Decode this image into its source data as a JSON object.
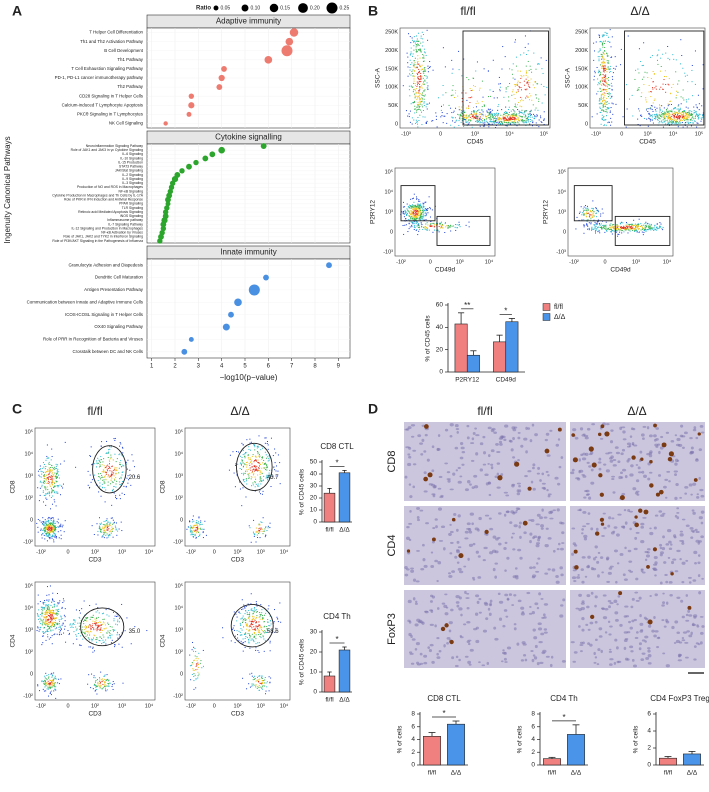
{
  "panel_letters": [
    "A",
    "B",
    "C",
    "D"
  ],
  "panel_b": {
    "headers": [
      "fl/fl",
      "Δ/Δ"
    ],
    "flow_top": {
      "ylabel": "SSC-A",
      "xlabel": "CD45",
      "yticks": [
        "250K",
        "200K",
        "150K",
        "100K",
        "50K",
        "0"
      ],
      "xticks": [
        "-10³",
        "0",
        "10³",
        "10⁴",
        "10⁵"
      ]
    },
    "flow_bottom": {
      "ylabel": "P2RY12",
      "xlabel": "CD49d",
      "yticks": [
        "10⁵",
        "10⁴",
        "10³",
        "0",
        "-10³"
      ],
      "xticks": [
        "-10²",
        "0",
        "10³",
        "10⁴"
      ]
    }
  },
  "panel_c": {
    "headers": [
      "fl/fl",
      "Δ/Δ"
    ],
    "flow_cd8": {
      "ylabel": "CD8",
      "xlabel": "CD3",
      "yticks": [
        "10⁵",
        "10⁴",
        "10³",
        "10²",
        "0",
        "-10²"
      ],
      "xticks": [
        "-10²",
        "0",
        "10²",
        "10³",
        "10⁴"
      ],
      "gates": [
        "20.6",
        "43.7"
      ]
    },
    "flow_cd4": {
      "ylabel": "CD4",
      "xlabel": "CD3",
      "yticks": [
        "10⁵",
        "10⁴",
        "10³",
        "10²",
        "0",
        "-10²"
      ],
      "xticks": [
        "-10²",
        "0",
        "10²",
        "10³",
        "10⁴"
      ],
      "gates": [
        "35.0",
        "58.6"
      ]
    }
  },
  "panel_d": {
    "headers": [
      "fl/fl",
      "Δ/Δ"
    ],
    "stains": [
      "CD8",
      "CD4",
      "FoxP3"
    ]
  },
  "chart_data": [
    {
      "type": "dot",
      "xlabel": "−log10(p−value)",
      "ylabel": "Ingenuity Canonical Pathways",
      "xlim": [
        0.8,
        9.5
      ],
      "xticks": [
        1,
        2,
        3,
        4,
        5,
        6,
        7,
        8,
        9
      ],
      "size_legend": {
        "title": "Ratio",
        "values": [
          0.05,
          {
            "value": 0.1,
            "label": "0.10"
          },
          0.15,
          {
            "value": 0.2,
            "label": "0.20"
          },
          0.25
        ]
      },
      "facets": [
        {
          "name": "Adaptive immunity",
          "color": "#ee7b70",
          "categories": [
            "T Helper Cell Differentiation",
            "Th1 and Th2 Activation Pathway",
            "B Cell Development",
            "Th1 Pathway",
            "T Cell Exhaustion Signaling Pathway",
            "PD-1, PD-L1 cancer immunotherapy pathway",
            "Th2 Pathway",
            "CD28 Signaling in T Helper Cells",
            "Calcium-induced T Lymphocyte Apoptosis",
            "PKCθ Signaling in T Lymphocytes",
            "NK Cell Signaling"
          ],
          "values": [
            7.1,
            6.9,
            6.8,
            6.0,
            4.1,
            4.0,
            3.9,
            2.7,
            2.7,
            2.6,
            1.6
          ],
          "sizes": [
            0.15,
            0.12,
            0.25,
            0.12,
            0.07,
            0.08,
            0.07,
            0.06,
            0.08,
            0.05,
            0.04
          ]
        },
        {
          "name": "Cytokine signalling",
          "color": "#2ca52c",
          "categories": [
            "Neuroinflammation Signaling Pathway",
            "Role of JAK1 and JAK3 in γc Cytokine Signaling",
            "IL-6 Signaling",
            "IL-10 Signaling",
            "IL-15 Production",
            "STAT3 Pathway",
            "JAK/Stat Signaling",
            "IL-2 Signaling",
            "IL-9 Signaling",
            "IL-3 Signaling",
            "Production of NO and ROS in Macrophages",
            "NF-κB Signaling",
            "Cytokine Production in Macrophages and Th Cells by IL-17A",
            "Role of PKR in IFN Induction and Antiviral Response",
            "PPAR Signaling",
            "TLR Signaling",
            "Retinoic acid Mediated Apoptosis Signaling",
            "iNOS Signaling",
            "Inflammasome pathway",
            "IL-7 Signaling Pathway",
            "IL-12 Signaling and Production in Macrophages",
            "NF-κB Activation by Viruses",
            "Role of JAK1, JAK2 and TYK2 in Interferon Signaling",
            "Role of PI3K/AKT Signaling in the Pathogenesis of Influenza"
          ],
          "values": [
            5.8,
            4.0,
            3.6,
            3.3,
            2.9,
            2.6,
            2.3,
            2.1,
            2.0,
            1.9,
            1.85,
            1.8,
            1.75,
            1.7,
            1.7,
            1.65,
            1.6,
            1.6,
            1.55,
            1.5,
            1.5,
            1.45,
            1.4,
            1.35
          ],
          "sizes": [
            0.07,
            0.09,
            0.07,
            0.07,
            0.06,
            0.07,
            0.06,
            0.07,
            0.08,
            0.06,
            0.06,
            0.06,
            0.07,
            0.07,
            0.05,
            0.06,
            0.06,
            0.07,
            0.08,
            0.07,
            0.06,
            0.06,
            0.07,
            0.06
          ]
        },
        {
          "name": "Innate immunity",
          "color": "#4a90e2",
          "categories": [
            "Granulocyte Adhesion and Diapedesis",
            "Dendritic Cell Maturation",
            "Antigen Presentation Pathway",
            "Communication between Innate and Adaptive Immune Cells",
            "ICOS-ICOSL Signaling in T Helper Cells",
            "OX40 Signaling Pathway",
            "Role of PRR in Recognition of Bacteria and Viruses",
            "Crosstalk between DC and NK Cells"
          ],
          "values": [
            8.6,
            5.9,
            5.4,
            4.7,
            4.4,
            4.2,
            2.7,
            2.4
          ],
          "sizes": [
            0.07,
            0.07,
            0.25,
            0.12,
            0.07,
            0.1,
            0.05,
            0.07
          ]
        }
      ]
    },
    {
      "type": "bar",
      "ylabel": "% of CD45 cells",
      "categories": [
        "P2RY12",
        "CD49d"
      ],
      "series": [
        {
          "name": "fl/fl",
          "color": "#f07f7f",
          "values": [
            43,
            27
          ],
          "errors": [
            10,
            6
          ]
        },
        {
          "name": "Δ/Δ",
          "color": "#4a94ea",
          "values": [
            15,
            45
          ],
          "errors": [
            4,
            3
          ]
        }
      ],
      "significance": [
        "**",
        "*"
      ],
      "ylim": [
        0,
        60
      ],
      "yticks": [
        0,
        20,
        40,
        60
      ]
    },
    {
      "type": "bar",
      "title": "CD8 CTL",
      "ylabel": "% of CD45 cells",
      "categories": [
        "fl/fl",
        "Δ/Δ"
      ],
      "values": [
        24,
        41
      ],
      "errors": [
        4,
        2
      ],
      "colors": [
        "#f07f7f",
        "#4a94ea"
      ],
      "significance": "*",
      "ylim": [
        0,
        50
      ],
      "yticks": [
        0,
        10,
        20,
        30,
        40,
        50
      ]
    },
    {
      "type": "bar",
      "title": "CD4 Th",
      "ylabel": "% of CD45 cells",
      "categories": [
        "fl/fl",
        "Δ/Δ"
      ],
      "values": [
        8,
        21
      ],
      "errors": [
        2,
        1.5
      ],
      "colors": [
        "#f07f7f",
        "#4a94ea"
      ],
      "significance": "*",
      "ylim": [
        0,
        30
      ],
      "yticks": [
        0,
        10,
        20,
        30
      ]
    },
    {
      "type": "bar",
      "title": "CD8 CTL",
      "ylabel": "% of cells",
      "categories": [
        "fl/fl",
        "Δ/Δ"
      ],
      "values": [
        4.5,
        6.4
      ],
      "errors": [
        0.6,
        0.5
      ],
      "colors": [
        "#f07f7f",
        "#4a94ea"
      ],
      "significance": "*",
      "ylim": [
        0,
        8
      ],
      "yticks": [
        0,
        2,
        4,
        6,
        8
      ]
    },
    {
      "type": "bar",
      "title": "CD4 Th",
      "ylabel": "% of cells",
      "categories": [
        "fl/fl",
        "Δ/Δ"
      ],
      "values": [
        1.0,
        4.8
      ],
      "errors": [
        0.2,
        1.5
      ],
      "colors": [
        "#f07f7f",
        "#4a94ea"
      ],
      "significance": "*",
      "ylim": [
        0,
        8
      ],
      "yticks": [
        0,
        2,
        4,
        6,
        8
      ]
    },
    {
      "type": "bar",
      "title": "CD4 FoxP3 Treg",
      "ylabel": "% of cells",
      "categories": [
        "fl/fl",
        "Δ/Δ"
      ],
      "values": [
        0.8,
        1.3
      ],
      "errors": [
        0.2,
        0.3
      ],
      "colors": [
        "#f07f7f",
        "#4a94ea"
      ],
      "ylim": [
        0,
        6
      ],
      "yticks": [
        0,
        2,
        4,
        6
      ]
    }
  ]
}
